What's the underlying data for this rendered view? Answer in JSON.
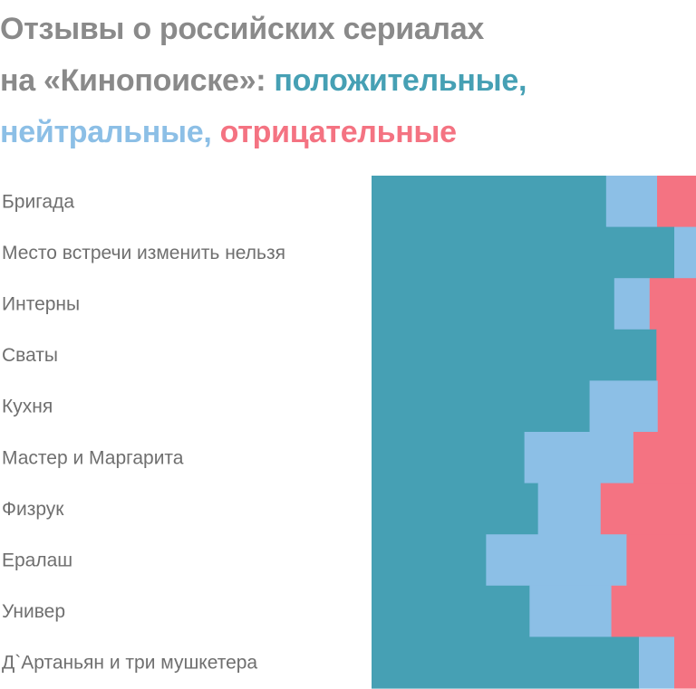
{
  "title": {
    "line1": "Отзывы о российских сериалах",
    "line2_prefix": "на «Кинопоиске»: ",
    "positive_word": "положительные,",
    "neutral_word": "нейтральные,",
    "negative_word": "отрицательные"
  },
  "colors": {
    "title": "#8a8a8a",
    "positive": "#46a0b4",
    "neutral": "#8cbfe6",
    "negative": "#f47382",
    "label": "#6f6f6f"
  },
  "chart_data": {
    "type": "bar",
    "orientation": "horizontal",
    "stacked": true,
    "normalized": true,
    "xlim": [
      0,
      100
    ],
    "categories": [
      "Бригада",
      "Место встречи изменить нельзя",
      "Интерны",
      "Сваты",
      "Кухня",
      "Мастер и Маргарита",
      "Физрук",
      "Ералаш",
      "Универ",
      "Д`Артаньян и три мушкетера"
    ],
    "series": [
      {
        "name": "положительные",
        "color": "#46a0b4",
        "values": [
          72.3,
          93.3,
          74.8,
          87.8,
          67.2,
          47.1,
          51.3,
          35.3,
          48.7,
          82.4
        ]
      },
      {
        "name": "нейтральные",
        "color": "#8cbfe6",
        "values": [
          15.7,
          6.7,
          10.9,
          0.0,
          21.0,
          33.6,
          19.3,
          43.3,
          25.2,
          10.9
        ]
      },
      {
        "name": "отрицательные",
        "color": "#f47382",
        "values": [
          12.0,
          0.0,
          14.3,
          12.2,
          11.8,
          19.3,
          29.4,
          21.4,
          26.1,
          6.7
        ]
      }
    ]
  }
}
